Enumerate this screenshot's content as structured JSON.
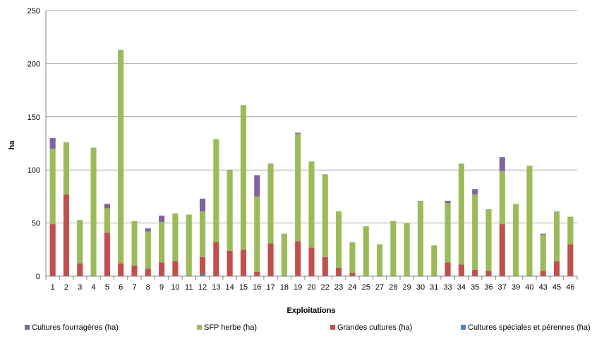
{
  "chart_data": {
    "type": "bar",
    "stacked": true,
    "title": "",
    "xlabel": "Exploitations",
    "ylabel": "ha",
    "ylim": [
      0,
      250
    ],
    "yticks": [
      0,
      50,
      100,
      150,
      200,
      250
    ],
    "grid": "horizontal",
    "legend_position": "bottom",
    "categories": [
      "1",
      "2",
      "3",
      "4",
      "5",
      "6",
      "7",
      "8",
      "9",
      "10",
      "11",
      "12",
      "13",
      "14",
      "15",
      "16",
      "17",
      "18",
      "19",
      "20",
      "22",
      "23",
      "24",
      "25",
      "27",
      "28",
      "29",
      "30",
      "31",
      "33",
      "34",
      "35",
      "36",
      "37",
      "39",
      "40",
      "43",
      "45",
      "46"
    ],
    "series": [
      {
        "name": "Cultures spéciales et pérennes (ha)",
        "color": "#4f81bd",
        "values": [
          0,
          0,
          0,
          0,
          0,
          0,
          0,
          0,
          0,
          0,
          0,
          2,
          0,
          0,
          0,
          0,
          0,
          0,
          0,
          0,
          0,
          0,
          0,
          0,
          0,
          0,
          0,
          0,
          0,
          0,
          0,
          0,
          0,
          0,
          0,
          0,
          0,
          0,
          0
        ]
      },
      {
        "name": "Grandes cultures (ha)",
        "color": "#c0504d",
        "values": [
          49,
          77,
          12,
          0,
          41,
          12,
          10,
          7,
          13,
          14,
          0,
          16,
          32,
          24,
          25,
          4,
          31,
          0,
          33,
          27,
          18,
          8,
          3,
          0,
          0,
          0,
          0,
          0,
          0,
          13,
          11,
          6,
          5,
          49,
          0,
          0,
          5,
          14,
          30
        ]
      },
      {
        "name": "SFP herbe (ha)",
        "color": "#9bbb59",
        "values": [
          71,
          49,
          41,
          121,
          23,
          201,
          42,
          35,
          38,
          45,
          58,
          43,
          97,
          76,
          136,
          71,
          75,
          40,
          101,
          81,
          78,
          53,
          29,
          47,
          30,
          52,
          50,
          71,
          29,
          56,
          95,
          71,
          58,
          50,
          68,
          104,
          34,
          47,
          26
        ]
      },
      {
        "name": "Cultures fourragères (ha)",
        "color": "#8064a2",
        "values": [
          10,
          0,
          0,
          0,
          4,
          0,
          0,
          3,
          6,
          0,
          0,
          12,
          0,
          0,
          0,
          20,
          0,
          0,
          1,
          0,
          0,
          0,
          0,
          0,
          0,
          0,
          0,
          0,
          0,
          2,
          0,
          5,
          0,
          13,
          0,
          0,
          1,
          0,
          0
        ]
      }
    ],
    "legend": [
      {
        "name": "Cultures fourragères (ha)",
        "color": "#8064a2"
      },
      {
        "name": "SFP herbe (ha)",
        "color": "#9bbb59"
      },
      {
        "name": "Grandes cultures (ha)",
        "color": "#c0504d"
      },
      {
        "name": "Cultures spéciales et pérennes (ha)",
        "color": "#4f81bd"
      }
    ]
  }
}
